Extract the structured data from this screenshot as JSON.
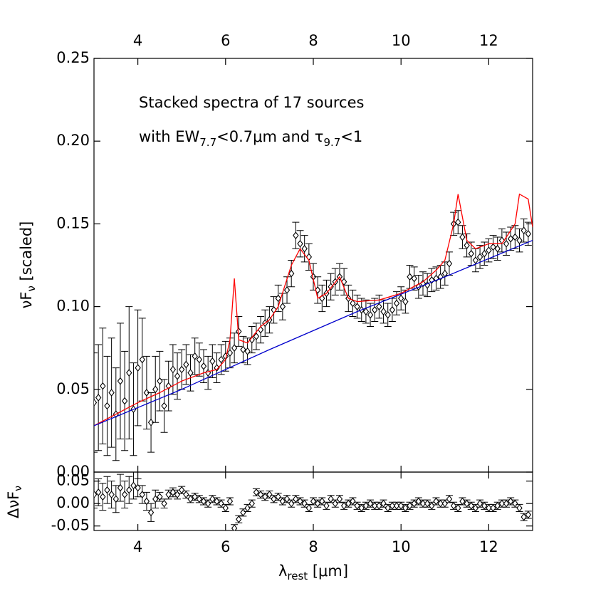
{
  "chart_data": [
    {
      "type": "scatter",
      "annotation_1": "Stacked spectra of 17 sources",
      "annotation_2": [
        "with EW",
        "7.7",
        "<0.7μm and τ",
        "9.7",
        "<1"
      ],
      "ylabel": [
        "νF",
        "ν",
        " [scaled]"
      ],
      "xlim": [
        3,
        13
      ],
      "ylim": [
        0,
        0.25
      ],
      "xticks": [
        4,
        6,
        8,
        10,
        12
      ],
      "yticks": [
        {
          "value": 0,
          "label": "0.00"
        },
        0.05,
        {
          "value": 0.1,
          "label": "0.10"
        },
        0.15,
        {
          "value": 0.2,
          "label": "0.20"
        },
        0.25
      ],
      "series": [
        {
          "type": "scatter",
          "color": "#000000",
          "x": [
            3.0,
            3.1,
            3.2,
            3.3,
            3.4,
            3.5,
            3.6,
            3.7,
            3.8,
            3.9,
            4.0,
            4.1,
            4.2,
            4.3,
            4.4,
            4.5,
            4.6,
            4.7,
            4.8,
            4.9,
            5.0,
            5.1,
            5.2,
            5.3,
            5.4,
            5.5,
            5.6,
            5.7,
            5.8,
            5.9,
            6.0,
            6.1,
            6.2,
            6.3,
            6.4,
            6.5,
            6.6,
            6.7,
            6.8,
            6.9,
            7.0,
            7.1,
            7.2,
            7.3,
            7.4,
            7.5,
            7.6,
            7.7,
            7.8,
            7.9,
            8.0,
            8.1,
            8.2,
            8.3,
            8.4,
            8.5,
            8.6,
            8.7,
            8.8,
            8.9,
            9.0,
            9.1,
            9.2,
            9.3,
            9.4,
            9.5,
            9.6,
            9.7,
            9.8,
            9.9,
            10.0,
            10.1,
            10.2,
            10.3,
            10.4,
            10.5,
            10.6,
            10.7,
            10.8,
            10.9,
            11.0,
            11.1,
            11.2,
            11.3,
            11.4,
            11.5,
            11.6,
            11.7,
            11.8,
            11.9,
            12.0,
            12.1,
            12.2,
            12.3,
            12.4,
            12.5,
            12.6,
            12.7,
            12.8,
            12.9
          ],
          "values": [
            0.042,
            0.045,
            0.052,
            0.04,
            0.048,
            0.035,
            0.055,
            0.043,
            0.06,
            0.038,
            0.063,
            0.068,
            0.048,
            0.03,
            0.05,
            0.055,
            0.04,
            0.052,
            0.062,
            0.058,
            0.062,
            0.065,
            0.06,
            0.07,
            0.068,
            0.064,
            0.06,
            0.067,
            0.063,
            0.068,
            0.07,
            0.072,
            0.075,
            0.085,
            0.074,
            0.073,
            0.08,
            0.082,
            0.086,
            0.09,
            0.092,
            0.098,
            0.105,
            0.1,
            0.11,
            0.12,
            0.143,
            0.138,
            0.135,
            0.13,
            0.118,
            0.11,
            0.105,
            0.108,
            0.112,
            0.115,
            0.118,
            0.115,
            0.105,
            0.102,
            0.1,
            0.098,
            0.097,
            0.095,
            0.098,
            0.1,
            0.097,
            0.095,
            0.098,
            0.102,
            0.105,
            0.103,
            0.118,
            0.117,
            0.112,
            0.114,
            0.113,
            0.116,
            0.117,
            0.118,
            0.12,
            0.126,
            0.15,
            0.151,
            0.142,
            0.137,
            0.132,
            0.128,
            0.13,
            0.132,
            0.134,
            0.136,
            0.135,
            0.14,
            0.138,
            0.141,
            0.142,
            0.14,
            0.146,
            0.144
          ],
          "errors": [
            0.03,
            0.032,
            0.035,
            0.03,
            0.033,
            0.028,
            0.035,
            0.03,
            0.04,
            0.028,
            0.035,
            0.025,
            0.022,
            0.018,
            0.02,
            0.018,
            0.016,
            0.015,
            0.015,
            0.014,
            0.012,
            0.012,
            0.011,
            0.011,
            0.01,
            0.01,
            0.01,
            0.01,
            0.009,
            0.009,
            0.009,
            0.009,
            0.009,
            0.009,
            0.008,
            0.008,
            0.008,
            0.008,
            0.008,
            0.008,
            0.008,
            0.008,
            0.008,
            0.008,
            0.008,
            0.008,
            0.008,
            0.008,
            0.008,
            0.008,
            0.008,
            0.008,
            0.008,
            0.008,
            0.008,
            0.008,
            0.008,
            0.008,
            0.008,
            0.008,
            0.007,
            0.007,
            0.007,
            0.007,
            0.007,
            0.007,
            0.007,
            0.007,
            0.007,
            0.007,
            0.007,
            0.007,
            0.007,
            0.007,
            0.007,
            0.007,
            0.007,
            0.007,
            0.007,
            0.007,
            0.007,
            0.007,
            0.007,
            0.007,
            0.007,
            0.007,
            0.007,
            0.007,
            0.007,
            0.007,
            0.007,
            0.007,
            0.007,
            0.007,
            0.007,
            0.007,
            0.007,
            0.007,
            0.007,
            0.007
          ]
        },
        {
          "type": "line",
          "color": "#ff0000",
          "x": [
            3.0,
            3.5,
            4.0,
            4.5,
            5.0,
            5.5,
            5.8,
            6.0,
            6.1,
            6.2,
            6.3,
            6.5,
            6.8,
            7.0,
            7.2,
            7.5,
            7.7,
            7.9,
            8.1,
            8.3,
            8.6,
            8.8,
            9.0,
            9.5,
            10.0,
            10.5,
            10.8,
            11.0,
            11.2,
            11.3,
            11.5,
            11.7,
            12.0,
            12.3,
            12.6,
            12.7,
            12.9,
            13.0
          ],
          "values": [
            0.028,
            0.035,
            0.042,
            0.048,
            0.055,
            0.06,
            0.062,
            0.068,
            0.08,
            0.117,
            0.08,
            0.078,
            0.088,
            0.092,
            0.1,
            0.125,
            0.135,
            0.128,
            0.105,
            0.108,
            0.118,
            0.105,
            0.103,
            0.104,
            0.108,
            0.115,
            0.122,
            0.128,
            0.15,
            0.168,
            0.14,
            0.135,
            0.138,
            0.138,
            0.15,
            0.168,
            0.165,
            0.148
          ]
        },
        {
          "type": "line",
          "color": "#0000cc",
          "x": [
            3,
            5,
            7,
            9,
            11,
            13
          ],
          "values": [
            0.028,
            0.05,
            0.074,
            0.097,
            0.118,
            0.14
          ]
        }
      ]
    },
    {
      "type": "scatter",
      "ylabel": [
        "ΔνF",
        "ν"
      ],
      "xlabel": [
        "λ",
        "rest",
        " [μm]"
      ],
      "xlim": [
        3,
        13
      ],
      "ylim": [
        -0.06,
        0.07
      ],
      "xticks": [
        4,
        6,
        8,
        10,
        12
      ],
      "yticks": [
        -0.05,
        {
          "value": 0,
          "label": "0.00"
        },
        0.05
      ],
      "series": [
        {
          "type": "scatter",
          "color": "#000000",
          "x": [
            3.0,
            3.1,
            3.2,
            3.3,
            3.4,
            3.5,
            3.6,
            3.7,
            3.8,
            3.9,
            4.0,
            4.1,
            4.2,
            4.3,
            4.4,
            4.5,
            4.6,
            4.7,
            4.8,
            4.9,
            5.0,
            5.1,
            5.2,
            5.3,
            5.4,
            5.5,
            5.6,
            5.7,
            5.8,
            5.9,
            6.0,
            6.1,
            6.2,
            6.3,
            6.4,
            6.5,
            6.6,
            6.7,
            6.8,
            6.9,
            7.0,
            7.1,
            7.2,
            7.3,
            7.4,
            7.5,
            7.6,
            7.7,
            7.8,
            7.9,
            8.0,
            8.1,
            8.2,
            8.3,
            8.4,
            8.5,
            8.6,
            8.7,
            8.8,
            8.9,
            9.0,
            9.1,
            9.2,
            9.3,
            9.4,
            9.5,
            9.6,
            9.7,
            9.8,
            9.9,
            10.0,
            10.1,
            10.2,
            10.3,
            10.4,
            10.5,
            10.6,
            10.7,
            10.8,
            10.9,
            11.0,
            11.1,
            11.2,
            11.3,
            11.4,
            11.5,
            11.6,
            11.7,
            11.8,
            11.9,
            12.0,
            12.1,
            12.2,
            12.3,
            12.4,
            12.5,
            12.6,
            12.7,
            12.8,
            12.9
          ],
          "values": [
            0.02,
            0.025,
            0.015,
            0.03,
            0.02,
            0.01,
            0.035,
            0.02,
            0.03,
            0.04,
            0.035,
            0.02,
            0.005,
            -0.02,
            0.01,
            0.015,
            0.0,
            0.02,
            0.025,
            0.02,
            0.03,
            0.02,
            0.01,
            0.015,
            0.01,
            0.005,
            0.0,
            0.01,
            0.005,
            0.0,
            -0.01,
            0.005,
            -0.055,
            -0.035,
            -0.02,
            -0.01,
            0.0,
            0.025,
            0.02,
            0.015,
            0.02,
            0.01,
            0.015,
            0.005,
            0.01,
            0.0,
            0.01,
            0.005,
            0.0,
            -0.01,
            0.005,
            0.0,
            0.005,
            -0.005,
            0.01,
            0.0,
            0.01,
            -0.005,
            0.0,
            0.005,
            -0.005,
            -0.01,
            -0.005,
            0.0,
            -0.005,
            -0.005,
            0.0,
            -0.01,
            -0.005,
            -0.005,
            -0.005,
            -0.01,
            -0.005,
            0.0,
            0.005,
            0.0,
            0.0,
            -0.005,
            0.005,
            0.0,
            0.0,
            0.01,
            -0.005,
            -0.01,
            0.005,
            0.0,
            -0.005,
            -0.01,
            0.0,
            -0.005,
            -0.01,
            -0.01,
            -0.005,
            0.0,
            0.0,
            0.005,
            0.0,
            -0.01,
            -0.03,
            -0.025
          ],
          "errors": [
            0.03,
            0.03,
            0.03,
            0.03,
            0.03,
            0.03,
            0.03,
            0.03,
            0.03,
            0.03,
            0.02,
            0.02,
            0.02,
            0.02,
            0.02,
            0.01,
            0.01,
            0.01,
            0.01,
            0.01,
            0.008,
            0.008,
            0.008,
            0.008,
            0.008,
            0.008,
            0.008,
            0.008,
            0.008,
            0.008,
            0.008,
            0.008,
            0.008,
            0.008,
            0.008,
            0.008,
            0.008,
            0.008,
            0.008,
            0.008,
            0.008,
            0.008,
            0.008,
            0.008,
            0.008,
            0.008,
            0.008,
            0.008,
            0.008,
            0.008,
            0.008,
            0.008,
            0.008,
            0.008,
            0.008,
            0.008,
            0.008,
            0.008,
            0.008,
            0.008,
            0.008,
            0.008,
            0.008,
            0.008,
            0.008,
            0.008,
            0.008,
            0.008,
            0.008,
            0.008,
            0.008,
            0.008,
            0.008,
            0.008,
            0.008,
            0.008,
            0.008,
            0.008,
            0.008,
            0.008,
            0.008,
            0.008,
            0.008,
            0.008,
            0.008,
            0.008,
            0.008,
            0.008,
            0.008,
            0.008,
            0.008,
            0.008,
            0.008,
            0.008,
            0.008,
            0.008,
            0.008,
            0.008,
            0.008,
            0.008
          ]
        }
      ]
    }
  ]
}
